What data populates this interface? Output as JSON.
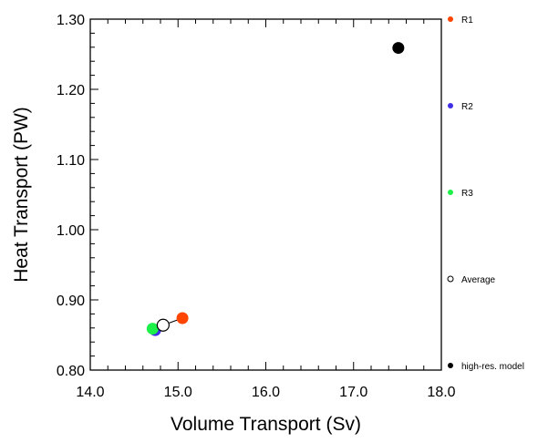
{
  "chart_data": {
    "type": "scatter",
    "title": "",
    "xlabel": "Volume Transport (Sv)",
    "ylabel": "Heat Transport (PW)",
    "xlim": [
      14.0,
      18.0
    ],
    "ylim": [
      0.8,
      1.3
    ],
    "xticks": [
      "14.0",
      "15.0",
      "16.0",
      "17.0",
      "18.0"
    ],
    "yticks": [
      "0.80",
      "0.90",
      "1.00",
      "1.10",
      "1.20",
      "1.30"
    ],
    "grid": false,
    "legend_position": "right",
    "series": [
      {
        "name": "R1",
        "color": "#ff4500",
        "marker": "filled-circle",
        "x": [
          15.05
        ],
        "y": [
          0.874
        ]
      },
      {
        "name": "R2",
        "color": "#3f2ee6",
        "marker": "filled-circle",
        "x": [
          14.74
        ],
        "y": [
          0.857
        ]
      },
      {
        "name": "R3",
        "color": "#1ef04a",
        "marker": "filled-circle",
        "x": [
          14.71
        ],
        "y": [
          0.859
        ]
      },
      {
        "name": "Average",
        "color": "#000000",
        "marker": "open-circle",
        "x": [
          14.83
        ],
        "y": [
          0.864
        ]
      },
      {
        "name": "high-res. model",
        "color": "#000000",
        "marker": "filled-circle",
        "x": [
          17.51
        ],
        "y": [
          1.259
        ]
      }
    ],
    "connectors": [
      {
        "from": "Average",
        "to": "R1"
      },
      {
        "from": "Average",
        "to": "R2"
      },
      {
        "from": "Average",
        "to": "R3"
      }
    ]
  }
}
